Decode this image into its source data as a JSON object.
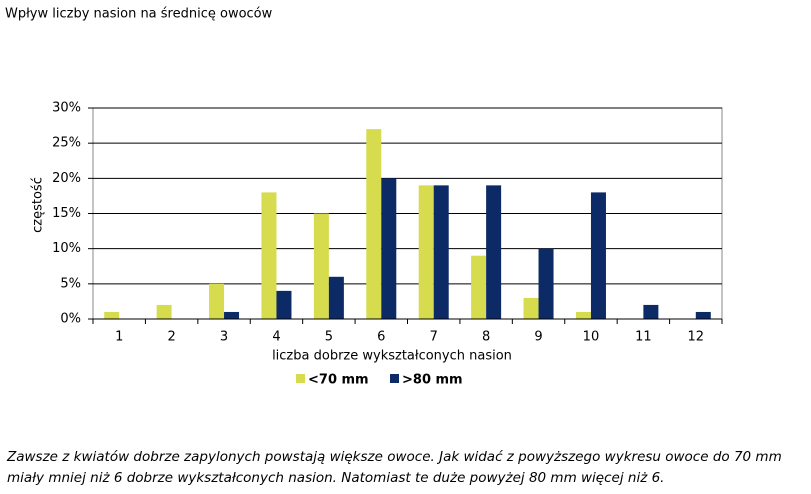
{
  "chart_data": {
    "type": "bar",
    "title": "Wpływ liczby nasion na średnicę owoców",
    "x_label": "liczba dobrze wykształconych nasion",
    "y_label": "częstość",
    "categories": [
      "1",
      "2",
      "3",
      "4",
      "5",
      "6",
      "7",
      "8",
      "9",
      "10",
      "11",
      "12"
    ],
    "series": [
      {
        "name": "<70 mm",
        "color": "#d6dc4e",
        "values": [
          1,
          2,
          5,
          18,
          15,
          27,
          19,
          9,
          3,
          1,
          0,
          0
        ]
      },
      {
        "name": ">80 mm",
        "color": "#0c2a66",
        "values": [
          0,
          0,
          1,
          4,
          6,
          20,
          19,
          19,
          10,
          18,
          2,
          1
        ]
      }
    ],
    "ylim": [
      0,
      30
    ],
    "yticks": [
      {
        "value": 0,
        "label": "0%"
      },
      {
        "value": 5,
        "label": "5%"
      },
      {
        "value": 10,
        "label": "10%"
      },
      {
        "value": 15,
        "label": "15%"
      },
      {
        "value": 20,
        "label": "20%"
      },
      {
        "value": 25,
        "label": "25%"
      },
      {
        "value": 30,
        "label": "30%"
      }
    ],
    "grid": true,
    "legend": "bottom"
  },
  "caption": [
    "Zawsze z kwiatów dobrze zapylonych powstają większe owoce. Jak widać z powyższego wykresu owoce do 70 mm",
    "miały mniej niż 6 dobrze wykształconych nasion. Natomiast te duże powyżej 80 mm więcej niż 6."
  ]
}
